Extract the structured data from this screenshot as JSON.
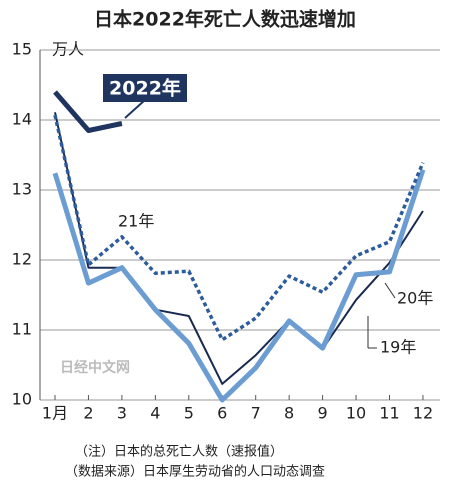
{
  "chart_data": {
    "type": "line",
    "title": "日本2022年死亡人数迅速增加",
    "unit": "万人",
    "watermark": "日经中文网",
    "notes": [
      "（注）日本的总死亡人数（速报值）",
      "（数据来源）日本厚生劳动省的人口动态调查"
    ],
    "categories": [
      "1月",
      "2",
      "3",
      "4",
      "5",
      "6",
      "7",
      "8",
      "9",
      "10",
      "11",
      "12"
    ],
    "ylim": [
      10,
      15
    ],
    "yticks": [
      10,
      11,
      12,
      13,
      14,
      15
    ],
    "grid": true,
    "series": [
      {
        "name": "2022年",
        "color": "#1f3560",
        "style": "thick",
        "values": [
          14.4,
          13.85,
          13.95,
          null,
          null,
          null,
          null,
          null,
          null,
          null,
          null,
          null
        ]
      },
      {
        "name": "21年",
        "color": "#2d5c9c",
        "style": "dotted",
        "values": [
          14.07,
          11.93,
          12.33,
          11.81,
          11.84,
          10.86,
          11.17,
          11.77,
          11.54,
          12.06,
          12.26,
          13.39
        ]
      },
      {
        "name": "20年",
        "color": "#6b9dd2",
        "style": "thick",
        "values": [
          13.24,
          11.67,
          11.89,
          11.29,
          10.81,
          10.0,
          10.46,
          11.13,
          10.74,
          11.79,
          11.83,
          13.29
        ]
      },
      {
        "name": "19年",
        "color": "#1a2a50",
        "style": "thin",
        "values": [
          14.11,
          11.89,
          11.89,
          11.29,
          11.2,
          10.23,
          10.64,
          11.14,
          10.73,
          11.43,
          11.96,
          12.7
        ]
      }
    ]
  }
}
